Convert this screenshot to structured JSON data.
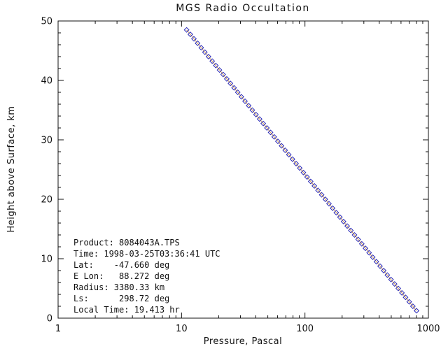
{
  "chart_data": {
    "type": "line",
    "title": "MGS Radio Occultation",
    "xlabel": "Pressure, Pascal",
    "ylabel": "Height above Surface, km",
    "x_scale": "log",
    "xlim": [
      1,
      1000
    ],
    "ylim": [
      0,
      50
    ],
    "x_ticks": [
      "1",
      "10",
      "100",
      "1000"
    ],
    "y_ticks": [
      "0",
      "10",
      "20",
      "30",
      "40",
      "50"
    ],
    "grid": false,
    "legend": "none",
    "marker": "open-diamond",
    "marker_color": "#2a2ab8",
    "line_color": "#d2a05a",
    "axis_color": "#111111",
    "points": [
      [
        11.0,
        48.5
      ],
      [
        11.78,
        47.75
      ],
      [
        12.6,
        47.0
      ],
      [
        13.49,
        46.25
      ],
      [
        14.44,
        45.5
      ],
      [
        15.46,
        44.75
      ],
      [
        16.55,
        44.0
      ],
      [
        17.72,
        43.25
      ],
      [
        18.96,
        42.5
      ],
      [
        20.3,
        41.75
      ],
      [
        21.73,
        41.0
      ],
      [
        23.26,
        40.25
      ],
      [
        24.9,
        39.5
      ],
      [
        26.65,
        38.75
      ],
      [
        28.53,
        38.0
      ],
      [
        30.54,
        37.25
      ],
      [
        32.69,
        36.5
      ],
      [
        34.99,
        35.75
      ],
      [
        37.46,
        35.0
      ],
      [
        40.1,
        34.25
      ],
      [
        42.92,
        33.5
      ],
      [
        45.94,
        32.75
      ],
      [
        49.18,
        32.0
      ],
      [
        52.65,
        31.25
      ],
      [
        56.35,
        30.5
      ],
      [
        60.32,
        29.75
      ],
      [
        64.57,
        29.0
      ],
      [
        69.12,
        28.25
      ],
      [
        73.99,
        27.5
      ],
      [
        79.21,
        26.75
      ],
      [
        84.79,
        26.0
      ],
      [
        90.76,
        25.25
      ],
      [
        97.15,
        24.5
      ],
      [
        104.0,
        23.75
      ],
      [
        111.3,
        23.0
      ],
      [
        119.2,
        22.25
      ],
      [
        127.6,
        21.5
      ],
      [
        136.6,
        20.75
      ],
      [
        146.2,
        20.0
      ],
      [
        156.5,
        19.25
      ],
      [
        167.5,
        18.5
      ],
      [
        179.3,
        17.75
      ],
      [
        191.9,
        17.0
      ],
      [
        205.4,
        16.25
      ],
      [
        219.9,
        15.5
      ],
      [
        235.4,
        14.75
      ],
      [
        252.0,
        14.0
      ],
      [
        269.7,
        13.25
      ],
      [
        288.7,
        12.5
      ],
      [
        309.0,
        11.75
      ],
      [
        330.8,
        11.0
      ],
      [
        354.1,
        10.25
      ],
      [
        379.0,
        9.5
      ],
      [
        405.8,
        8.75
      ],
      [
        434.3,
        8.0
      ],
      [
        464.9,
        7.25
      ],
      [
        497.7,
        6.5
      ],
      [
        532.7,
        5.75
      ],
      [
        570.2,
        5.0
      ],
      [
        610.4,
        4.25
      ],
      [
        653.4,
        3.5
      ],
      [
        699.4,
        2.75
      ],
      [
        748.6,
        2.0
      ],
      [
        801.3,
        1.25
      ]
    ]
  },
  "annotation": {
    "lines": [
      "Product: 8084043A.TPS",
      "Time: 1998-03-25T03:36:41 UTC",
      "Lat:    -47.660 deg",
      "E Lon:   88.272 deg",
      "Radius: 3380.33 km",
      "Ls:      298.72 deg",
      "Local Time: 19.413 hr"
    ]
  }
}
